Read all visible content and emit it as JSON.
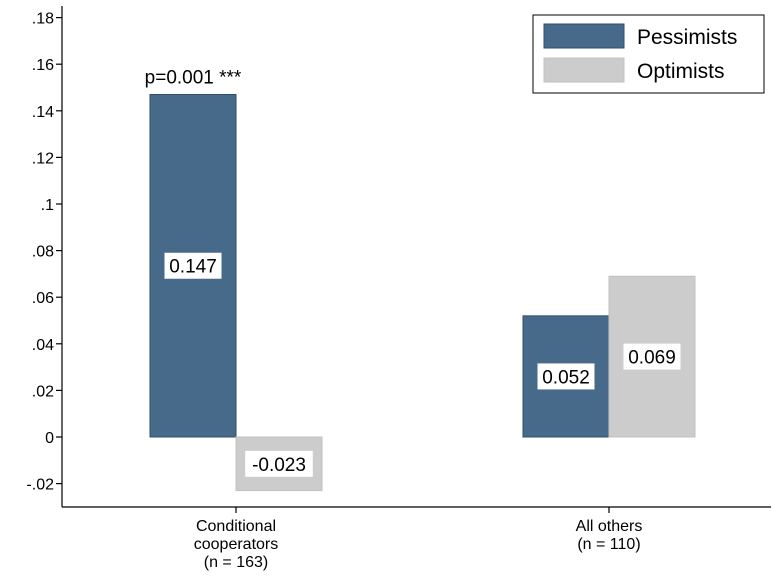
{
  "chart_data": {
    "type": "bar",
    "categories": [
      [
        "Conditional",
        "cooperators",
        "(n = 163)"
      ],
      [
        "All others",
        "(n = 110)"
      ]
    ],
    "series": [
      {
        "name": "Pessimists",
        "color": "#486a8a",
        "values": [
          0.147,
          0.052
        ],
        "labels": [
          "0.147",
          "0.052"
        ]
      },
      {
        "name": "Optimists",
        "color": "#cccccc",
        "values": [
          -0.023,
          0.069
        ],
        "labels": [
          "-0.023",
          "0.069"
        ]
      }
    ],
    "ylim": [
      -0.023,
      0.18
    ],
    "yticks": [
      {
        "value": 0.18,
        "label": ".18"
      },
      {
        "value": 0.16,
        "label": ".16"
      },
      {
        "value": 0.14,
        "label": ".14"
      },
      {
        "value": 0.12,
        "label": ".12"
      },
      {
        "value": 0.1,
        "label": ".1"
      },
      {
        "value": 0.08,
        "label": ".08"
      },
      {
        "value": 0.06,
        "label": ".06"
      },
      {
        "value": 0.04,
        "label": ".04"
      },
      {
        "value": 0.02,
        "label": ".02"
      },
      {
        "value": 0.0,
        "label": "0"
      },
      {
        "value": -0.02,
        "label": "-.02"
      }
    ],
    "annotations": [
      {
        "text": "p=0.001 ***",
        "category_index": 0,
        "series_index": 0,
        "y": 0.147
      }
    ],
    "legend_position": "top-right",
    "grid": false
  }
}
